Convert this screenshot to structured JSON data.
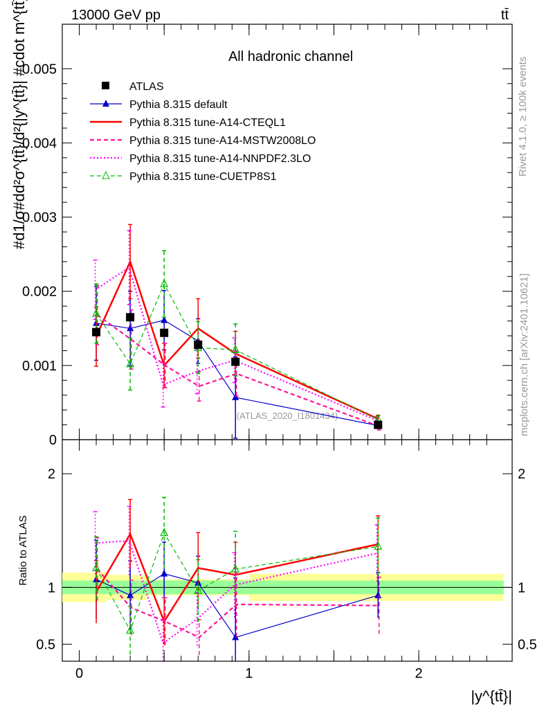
{
  "header": {
    "energy_label": "13000 GeV pp",
    "process_label": "tt̄"
  },
  "side_labels": {
    "rivet": "Rivet 4.1.0, ≥ 100k events",
    "mcplots": "mcplots.cern.ch [arXiv:2401.10621]"
  },
  "watermark": "(ATLAS_2020_I1801434)",
  "chart_data": [
    {
      "type": "line",
      "title": "All hadronic channel",
      "xlabel": "|y^{tt̄}|",
      "ylabel": "#d1/σ#dd²σ^{tt̄}/d²{|y^{tt̄}| #cdot m^{tt̄}} [1/GeV]",
      "ylabel_parts": {
        "main": "d²σ",
        "sup": "tt̄",
        "den": "d² {|y",
        "den2": "tt̄",
        "den3": "| #cdot m",
        "unit": "} [1/GeV]",
        "prefix": "#d",
        "frac": "1",
        "sigma": "σ",
        "hash": "#d"
      },
      "xlim": [
        -0.1,
        2.55
      ],
      "ylim": [
        0,
        0.0056
      ],
      "yticks": [
        0,
        0.001,
        0.002,
        0.003,
        0.004,
        0.005
      ],
      "yticklabels": [
        "0",
        "0.001",
        "0.002",
        "0.003",
        "0.004",
        "0.005"
      ],
      "x": [
        0.1,
        0.3,
        0.5,
        0.7,
        0.92,
        1.76
      ],
      "data": {
        "name": "ATLAS",
        "values": [
          0.00145,
          0.00165,
          0.00144,
          0.00128,
          0.00105,
          0.0002
        ]
      },
      "series": [
        {
          "name": "Pythia 8.315 default",
          "color": "#0000cc",
          "values": [
            0.00157,
            0.0015,
            0.00161,
            0.00133,
            0.00057,
            0.00019
          ],
          "errors": [
            0.0005,
            0.0005,
            0.0004,
            0.0003,
            0.00055,
            4e-05
          ]
        },
        {
          "name": "Pythia 8.315 tune-A14-CTEQL1",
          "color": "#ff0000",
          "values": [
            0.00139,
            0.0024,
            0.001,
            0.0015,
            0.00116,
            0.00028
          ],
          "errors": [
            0.0004,
            0.0005,
            0.0003,
            0.0004,
            0.0003,
            5e-05
          ]
        },
        {
          "name": "Pythia 8.315 tune-A14-MSTW2008LO",
          "color": "#ff1493",
          "values": [
            0.00168,
            0.00135,
            0.001,
            0.00072,
            0.00089,
            0.00018
          ],
          "errors": [
            0.0004,
            0.0004,
            0.0003,
            0.0002,
            0.0003,
            5e-05
          ]
        },
        {
          "name": "Pythia 8.315 tune-A14-NNPDF2.3LO",
          "color": "#ff00ff",
          "values": [
            0.00202,
            0.00232,
            0.00074,
            0.00092,
            0.00107,
            0.00026
          ],
          "errors": [
            0.0004,
            0.0005,
            0.0003,
            0.0003,
            0.0003,
            5e-05
          ]
        },
        {
          "name": "Pythia 8.315 tune-CUETP8S1",
          "color": "#00bb00",
          "values": [
            0.0017,
            0.00102,
            0.0021,
            0.00124,
            0.00121,
            0.00027
          ],
          "errors": [
            0.0004,
            0.00035,
            0.00045,
            0.00035,
            0.00035,
            5e-05
          ]
        }
      ]
    },
    {
      "type": "line",
      "title": "",
      "xlabel": "|y^{tt̄}|",
      "ylabel": "Ratio to ATLAS",
      "xlim": [
        -0.1,
        2.55
      ],
      "ylim": [
        0.35,
        2.3
      ],
      "xticks": [
        0,
        1,
        2
      ],
      "xticklabels": [
        "0",
        "1",
        "2"
      ],
      "yticks": [
        0.5,
        1,
        2
      ],
      "yticklabels": [
        "0.5",
        "1",
        "2"
      ],
      "x": [
        0.1,
        0.3,
        0.5,
        0.7,
        0.92,
        1.76
      ],
      "bands": {
        "green": [
          [
            -0.1,
            0.16,
            0.06
          ],
          [
            0.16,
            0.4,
            0.06
          ],
          [
            0.4,
            1.0,
            0.06
          ],
          [
            1.0,
            2.5,
            0.06
          ]
        ],
        "yellow": [
          [
            -0.1,
            0.16,
            0.13
          ],
          [
            0.16,
            0.4,
            0.11
          ],
          [
            0.4,
            1.0,
            0.07
          ],
          [
            1.0,
            2.5,
            0.12
          ]
        ]
      },
      "series": [
        {
          "name": "Pythia 8.315 default",
          "color": "#0000cc",
          "values": [
            1.07,
            0.93,
            1.12,
            1.04,
            0.56,
            0.93
          ]
        },
        {
          "name": "Pythia 8.315 tune-A14-CTEQL1",
          "color": "#ff0000",
          "values": [
            0.96,
            1.47,
            0.7,
            1.17,
            1.11,
            1.38
          ]
        },
        {
          "name": "Pythia 8.315 tune-A14-MSTW2008LO",
          "color": "#ff1493",
          "values": [
            1.16,
            0.82,
            0.7,
            0.56,
            0.85,
            0.84
          ]
        },
        {
          "name": "Pythia 8.315 tune-A14-NNPDF2.3LO",
          "color": "#ff00ff",
          "values": [
            1.39,
            1.41,
            0.51,
            0.72,
            1.02,
            1.3
          ]
        },
        {
          "name": "Pythia 8.315 tune-CUETP8S1",
          "color": "#00bb00",
          "values": [
            1.17,
            0.62,
            1.48,
            0.97,
            1.16,
            1.36
          ]
        }
      ]
    }
  ]
}
